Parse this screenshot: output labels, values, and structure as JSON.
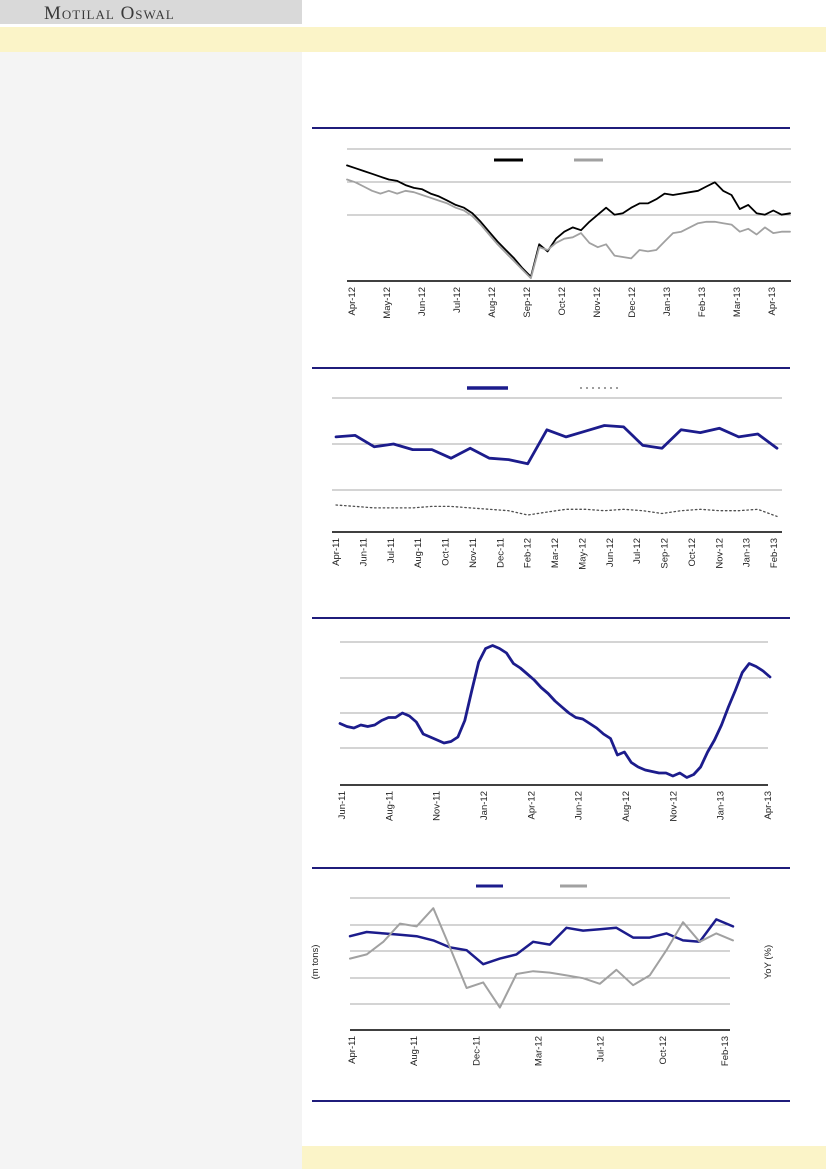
{
  "header": {
    "brand": "Motilal Oswal"
  },
  "colors": {
    "band": "#FBF4C8",
    "sidebar": "#F4F4F4",
    "top_box": "#D9D9D9",
    "separator": "#1F1C7B",
    "navy": "#1C1C8C",
    "black": "#000000",
    "gray_series": "#A1A1A1",
    "dotted_series": "#4F4F4F",
    "gridline": "#AAAAAA",
    "axis": "#000000",
    "label_text": "#1F1F1F"
  },
  "chart_data": [
    {
      "id": "chart-1",
      "type": "line",
      "title": "",
      "value_scale": "normalized-0-100 (no y-axis labels visible)",
      "x_labels": [
        "Apr-12",
        "May-12",
        "Jun-12",
        "Jul-12",
        "Aug-12",
        "Sep-12",
        "Oct-12",
        "Nov-12",
        "Dec-12",
        "Jan-13",
        "Feb-13",
        "Mar-13",
        "Apr-13"
      ],
      "legend": [
        {
          "label": "",
          "color": "#000000",
          "style": "solid"
        },
        {
          "label": "",
          "color": "#A1A1A1",
          "style": "solid"
        }
      ],
      "series": [
        {
          "name": "black-line",
          "color": "#000000",
          "style": "solid",
          "values": [
            82,
            80,
            78,
            76,
            74,
            72,
            71,
            68,
            66,
            65,
            62,
            60,
            57,
            54,
            52,
            48,
            42,
            35,
            28,
            22,
            16,
            9,
            3,
            26,
            21,
            30,
            35,
            38,
            36,
            42,
            47,
            52,
            47,
            48,
            52,
            55,
            55,
            58,
            62,
            61,
            62,
            63,
            64,
            67,
            70,
            64,
            61,
            51,
            54,
            48,
            47,
            50,
            47,
            48
          ]
        },
        {
          "name": "gray-line",
          "color": "#A1A1A1",
          "style": "solid",
          "values": [
            72,
            70,
            67,
            64,
            62,
            64,
            62,
            64,
            63,
            61,
            59,
            57,
            55,
            52,
            50,
            46,
            40,
            33,
            26,
            20,
            14,
            8,
            2,
            24,
            22,
            27,
            30,
            31,
            34,
            27,
            24,
            26,
            18,
            17,
            16,
            22,
            21,
            22,
            28,
            34,
            35,
            38,
            41,
            42,
            42,
            41,
            40,
            35,
            37,
            33,
            38,
            34,
            35,
            35
          ]
        }
      ]
    },
    {
      "id": "chart-2",
      "type": "line",
      "title": "",
      "value_scale": "normalized-0-100 (no y-axis labels visible)",
      "x_labels": [
        "Apr-11",
        "Jun-11",
        "Jul-11",
        "Aug-11",
        "Oct-11",
        "Nov-11",
        "Dec-11",
        "Feb-12",
        "Mar-12",
        "May-12",
        "Jun-12",
        "Jul-12",
        "Sep-12",
        "Oct-12",
        "Nov-12",
        "Jan-13",
        "Feb-13"
      ],
      "legend": [
        {
          "label": "",
          "color": "#1C1C8C",
          "style": "solid"
        },
        {
          "label": "",
          "color": "#7F7F7F",
          "style": "dotted"
        }
      ],
      "series": [
        {
          "name": "navy-line",
          "color": "#1C1C8C",
          "style": "solid",
          "values": [
            67,
            68,
            60,
            62,
            58,
            58,
            52,
            59,
            52,
            51,
            48,
            72,
            67,
            71,
            75,
            74,
            61,
            59,
            72,
            70,
            73,
            67,
            69,
            59
          ]
        },
        {
          "name": "dotted-line",
          "color": "#4F4F4F",
          "style": "dotted",
          "values": [
            19,
            18,
            17,
            17,
            17,
            18,
            18,
            17,
            16,
            15,
            12,
            14,
            16,
            16,
            15,
            16,
            15,
            13,
            15,
            16,
            15,
            15,
            16,
            11
          ]
        }
      ]
    },
    {
      "id": "chart-3",
      "type": "line",
      "title": "",
      "value_scale": "normalized-0-100 (no y-axis labels visible)",
      "x_labels": [
        "Jun-11",
        "Aug-11",
        "Nov-11",
        "Jan-12",
        "Apr-12",
        "Jun-12",
        "Aug-12",
        "Nov-12",
        "Jan-13",
        "Apr-13"
      ],
      "legend": [],
      "series": [
        {
          "name": "navy-line",
          "color": "#1C1C8C",
          "style": "solid",
          "values": [
            41,
            39,
            38,
            40,
            39,
            40,
            43,
            45,
            45,
            48,
            46,
            42,
            34,
            32,
            30,
            28,
            29,
            32,
            43,
            63,
            82,
            91,
            93,
            91,
            88,
            81,
            78,
            74,
            70,
            65,
            61,
            56,
            52,
            48,
            45,
            44,
            41,
            38,
            34,
            31,
            20,
            22,
            15,
            12,
            10,
            9,
            8,
            8,
            6,
            8,
            5,
            7,
            12,
            22,
            30,
            40,
            52,
            63,
            75,
            81,
            79,
            76,
            72
          ]
        }
      ]
    },
    {
      "id": "chart-4",
      "type": "line",
      "title": "",
      "ylabel_left": "(m tons)",
      "ylabel_right": "YoY (%)",
      "value_scale": "normalized-0-100 (no y-axis tick labels visible)",
      "x_labels": [
        "Apr-11",
        "Aug-11",
        "Dec-11",
        "Mar-12",
        "Jul-12",
        "Oct-12",
        "Feb-13"
      ],
      "legend": [
        {
          "label": "",
          "color": "#1C1C8C",
          "style": "solid"
        },
        {
          "label": "",
          "color": "#A1A1A1",
          "style": "solid"
        }
      ],
      "series": [
        {
          "name": "navy-line",
          "color": "#1C1C8C",
          "style": "solid",
          "values": [
            67,
            70,
            69,
            68,
            67,
            64,
            59,
            57,
            47,
            51,
            54,
            63,
            61,
            73,
            71,
            72,
            73,
            66,
            66,
            69,
            64,
            63,
            79,
            74
          ]
        },
        {
          "name": "gray-line",
          "color": "#A1A1A1",
          "style": "solid",
          "values": [
            51,
            54,
            63,
            76,
            74,
            87,
            59,
            30,
            34,
            16,
            40,
            42,
            41,
            39,
            37,
            33,
            43,
            32,
            39,
            57,
            77,
            63,
            69,
            64
          ]
        }
      ]
    }
  ]
}
